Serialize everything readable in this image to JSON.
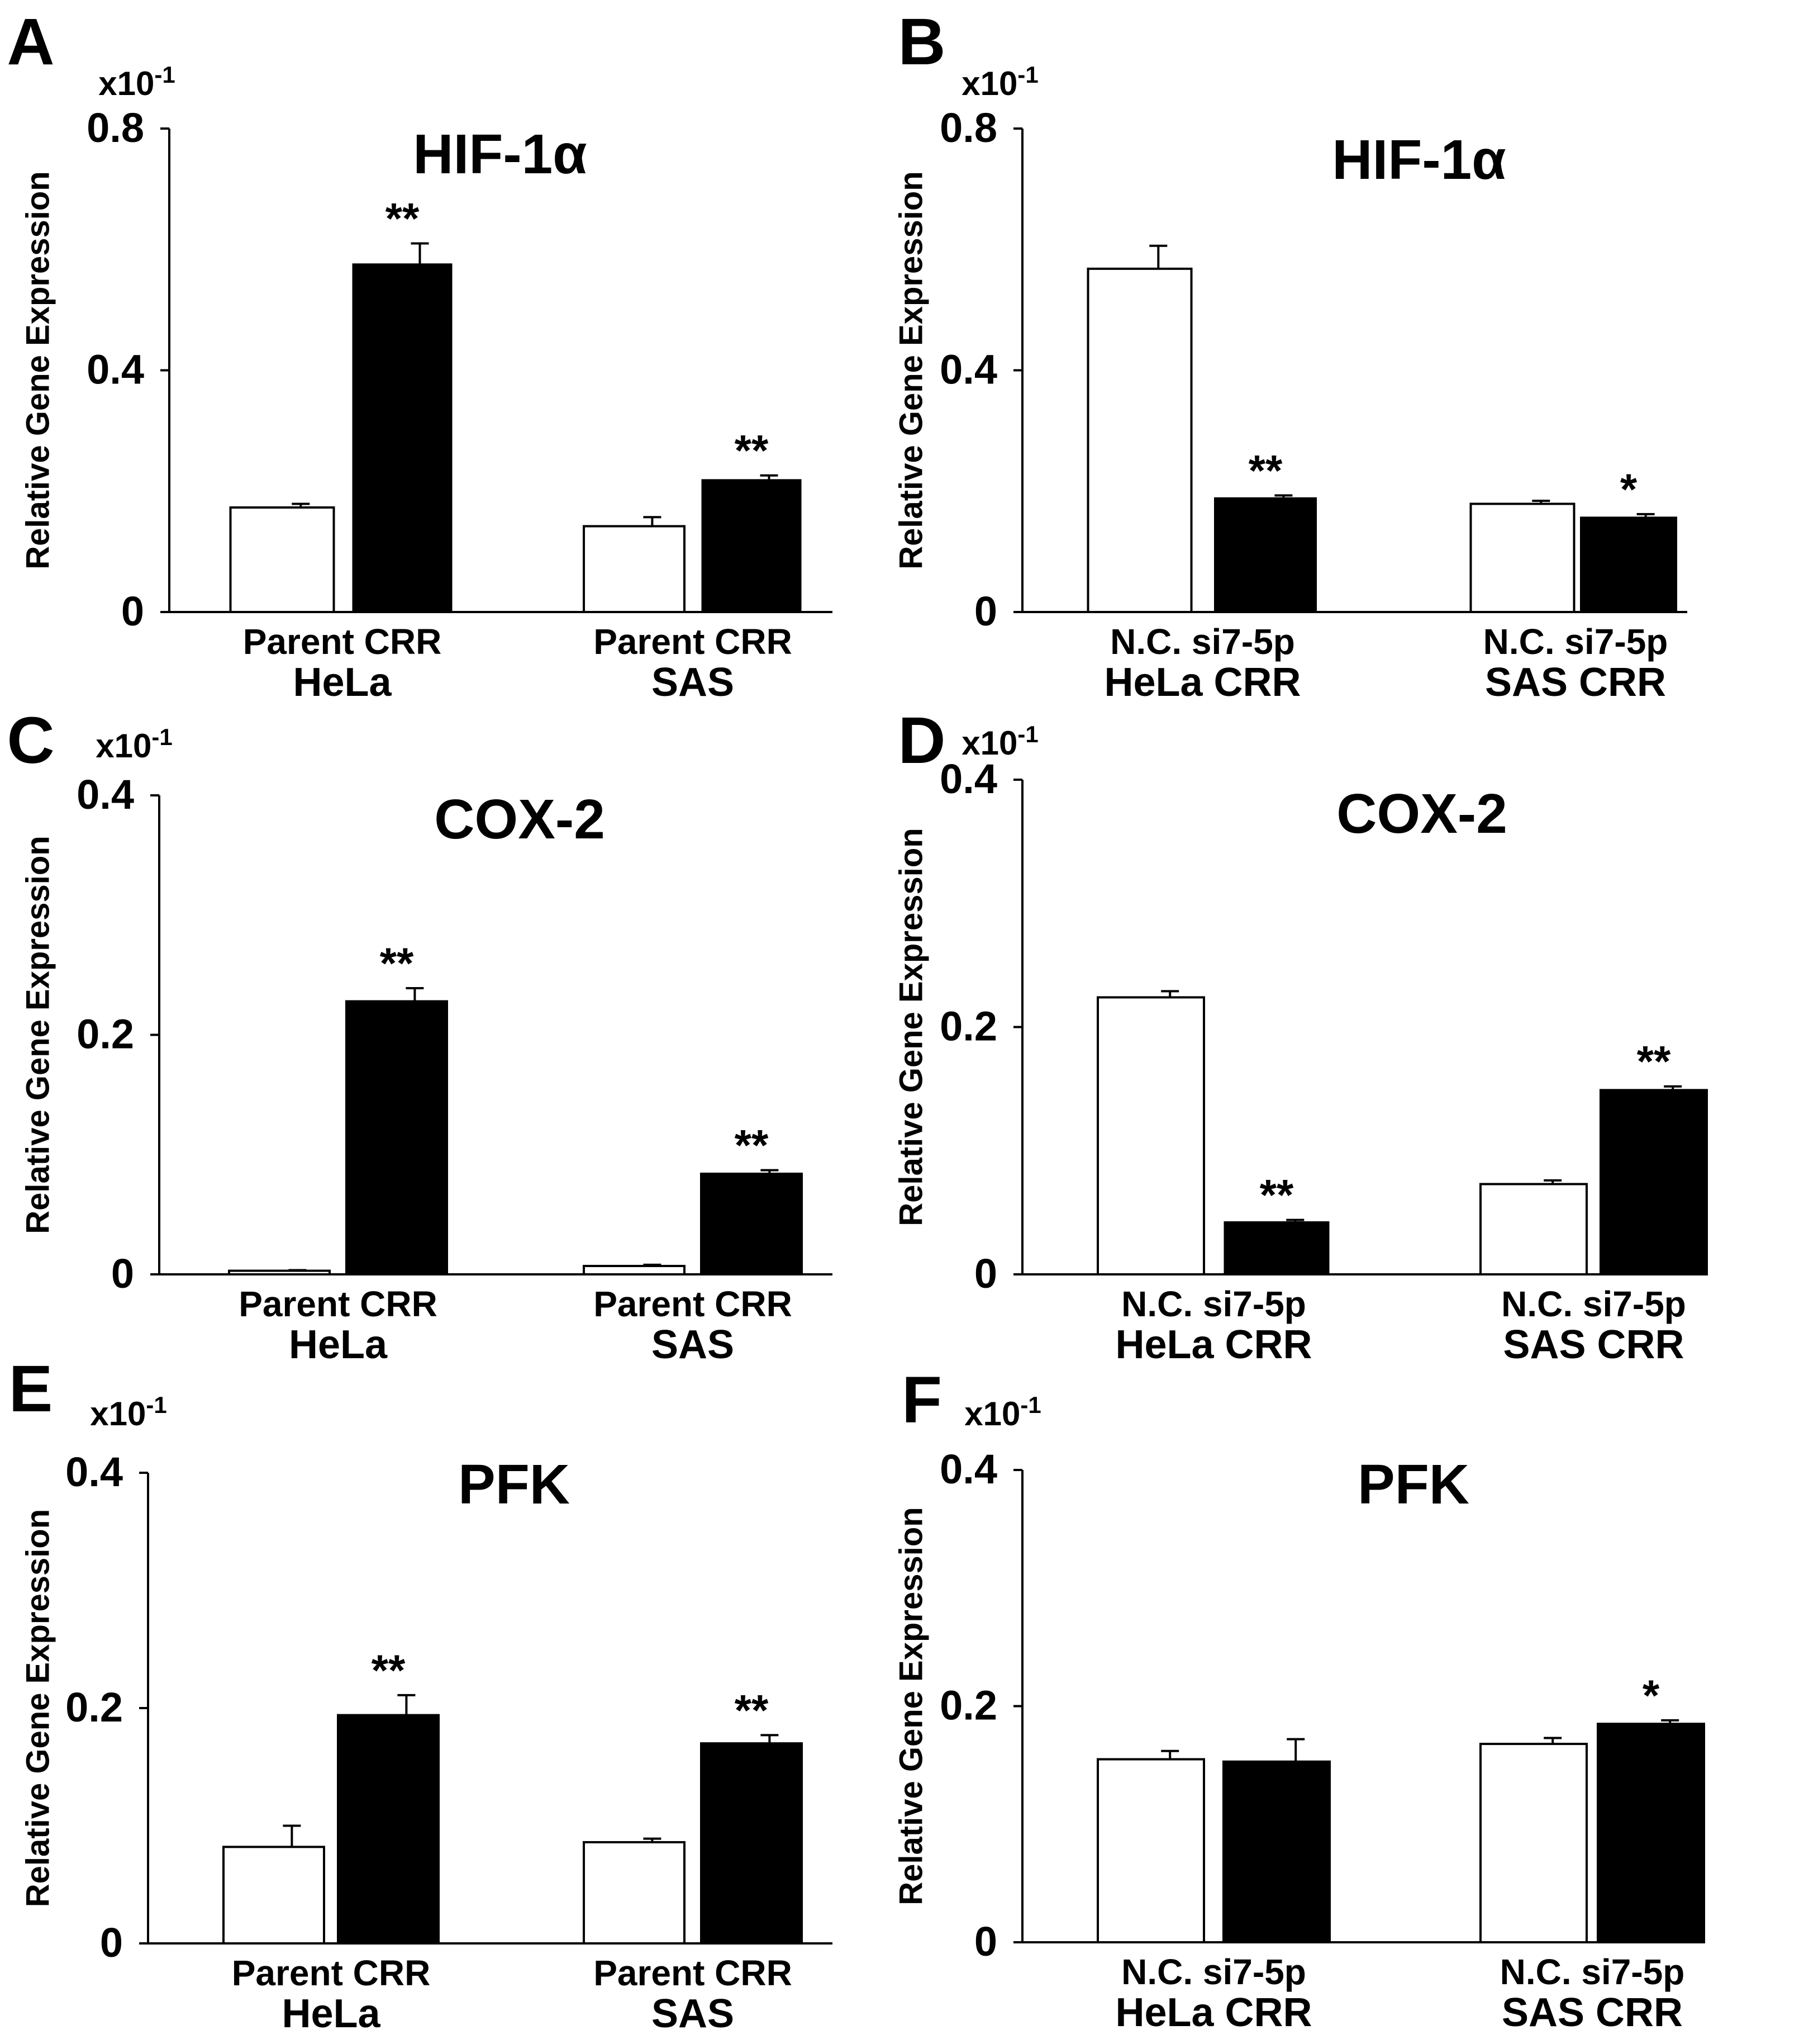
{
  "figure": {
    "ylabel": "Relative Gene Expression",
    "scale_note": "x10",
    "scale_exp": "-1",
    "colors": {
      "control": "#ffffff",
      "treated": "#000000",
      "ink": "#000000"
    }
  },
  "chart_data": [
    {
      "panel": "A",
      "type": "bar",
      "title": "HIF-1α",
      "ylabel": "Relative Gene Expression",
      "ylim": [
        0,
        0.8
      ],
      "yticks": [
        0,
        0.4,
        0.8
      ],
      "ytick_labels": [
        "0",
        "0.4",
        "0.8"
      ],
      "groups": [
        {
          "name": "HeLa",
          "sublabels": "Parent CRR",
          "bars": [
            {
              "label": "Parent",
              "value": 0.173,
              "error": 0.006,
              "fill": "white",
              "sig": ""
            },
            {
              "label": "CRR",
              "value": 0.575,
              "error": 0.035,
              "fill": "black",
              "sig": "**"
            }
          ]
        },
        {
          "name": "SAS",
          "sublabels": "Parent CRR",
          "bars": [
            {
              "label": "Parent",
              "value": 0.142,
              "error": 0.015,
              "fill": "white",
              "sig": ""
            },
            {
              "label": "CRR",
              "value": 0.218,
              "error": 0.008,
              "fill": "black",
              "sig": "**"
            }
          ]
        }
      ]
    },
    {
      "panel": "B",
      "type": "bar",
      "title": "HIF-1α",
      "ylabel": "Relative Gene Expression",
      "ylim": [
        0,
        0.8
      ],
      "yticks": [
        0,
        0.4,
        0.8
      ],
      "ytick_labels": [
        "0",
        "0.4",
        "0.8"
      ],
      "groups": [
        {
          "name": "HeLa CRR",
          "sublabels": "N.C. si7-5p",
          "bars": [
            {
              "label": "N.C.",
              "value": 0.568,
              "error": 0.038,
              "fill": "white",
              "sig": ""
            },
            {
              "label": "si7-5p",
              "value": 0.188,
              "error": 0.005,
              "fill": "black",
              "sig": "**"
            }
          ]
        },
        {
          "name": "SAS CRR",
          "sublabels": "N.C. si7-5p",
          "bars": [
            {
              "label": "N.C.",
              "value": 0.179,
              "error": 0.005,
              "fill": "white",
              "sig": ""
            },
            {
              "label": "si7-5p",
              "value": 0.156,
              "error": 0.006,
              "fill": "black",
              "sig": "*"
            }
          ]
        }
      ]
    },
    {
      "panel": "C",
      "type": "bar",
      "title": "COX-2",
      "ylabel": "Relative Gene Expression",
      "ylim": [
        0,
        0.4
      ],
      "yticks": [
        0,
        0.2,
        0.4
      ],
      "ytick_labels": [
        "0",
        "0.2",
        "0.4"
      ],
      "groups": [
        {
          "name": "HeLa",
          "sublabels": "Parent CRR",
          "bars": [
            {
              "label": "Parent",
              "value": 0.003,
              "error": 0.0005,
              "fill": "white",
              "sig": ""
            },
            {
              "label": "CRR",
              "value": 0.228,
              "error": 0.011,
              "fill": "black",
              "sig": "**"
            }
          ]
        },
        {
          "name": "SAS",
          "sublabels": "Parent CRR",
          "bars": [
            {
              "label": "Parent",
              "value": 0.007,
              "error": 0.001,
              "fill": "white",
              "sig": ""
            },
            {
              "label": "CRR",
              "value": 0.084,
              "error": 0.003,
              "fill": "black",
              "sig": "**"
            }
          ]
        }
      ]
    },
    {
      "panel": "D",
      "type": "bar",
      "title": "COX-2",
      "ylabel": "Relative Gene Expression",
      "ylim": [
        0,
        0.4
      ],
      "yticks": [
        0,
        0.2,
        0.4
      ],
      "ytick_labels": [
        "0",
        "0.2",
        "0.4"
      ],
      "groups": [
        {
          "name": "HeLa CRR",
          "sublabels": "N.C. si7-5p",
          "bars": [
            {
              "label": "N.C.",
              "value": 0.224,
              "error": 0.005,
              "fill": "white",
              "sig": ""
            },
            {
              "label": "si7-5p",
              "value": 0.042,
              "error": 0.002,
              "fill": "black",
              "sig": "**"
            }
          ]
        },
        {
          "name": "SAS CRR",
          "sublabels": "N.C. si7-5p",
          "bars": [
            {
              "label": "N.C.",
              "value": 0.073,
              "error": 0.003,
              "fill": "white",
              "sig": ""
            },
            {
              "label": "si7-5p",
              "value": 0.149,
              "error": 0.003,
              "fill": "black",
              "sig": "**"
            }
          ]
        }
      ]
    },
    {
      "panel": "E",
      "type": "bar",
      "title": "PFK",
      "ylabel": "Relative Gene Expression",
      "ylim": [
        0,
        0.4
      ],
      "yticks": [
        0,
        0.2,
        0.4
      ],
      "ytick_labels": [
        "0",
        "0.2",
        "0.4"
      ],
      "groups": [
        {
          "name": "HeLa",
          "sublabels": "Parent  CRR",
          "bars": [
            {
              "label": "Parent",
              "value": 0.082,
              "error": 0.018,
              "fill": "white",
              "sig": ""
            },
            {
              "label": "CRR",
              "value": 0.194,
              "error": 0.017,
              "fill": "black",
              "sig": "**"
            }
          ]
        },
        {
          "name": "SAS",
          "sublabels": "Parent  CRR",
          "bars": [
            {
              "label": "Parent",
              "value": 0.086,
              "error": 0.003,
              "fill": "white",
              "sig": ""
            },
            {
              "label": "CRR",
              "value": 0.17,
              "error": 0.007,
              "fill": "black",
              "sig": "**"
            }
          ]
        }
      ]
    },
    {
      "panel": "F",
      "type": "bar",
      "title": "PFK",
      "ylabel": "Relative Gene Expression",
      "ylim": [
        0,
        0.4
      ],
      "yticks": [
        0,
        0.2,
        0.4
      ],
      "ytick_labels": [
        "0",
        "0.2",
        "0.4"
      ],
      "groups": [
        {
          "name": "HeLa CRR",
          "sublabels": "N.C.  si7-5p",
          "bars": [
            {
              "label": "N.C.",
              "value": 0.155,
              "error": 0.007,
              "fill": "white",
              "sig": ""
            },
            {
              "label": "si7-5p",
              "value": 0.153,
              "error": 0.019,
              "fill": "black",
              "sig": ""
            }
          ]
        },
        {
          "name": "SAS CRR",
          "sublabels": "N.C.  si7-5p",
          "bars": [
            {
              "label": "N.C.",
              "value": 0.168,
              "error": 0.005,
              "fill": "white",
              "sig": ""
            },
            {
              "label": "si7-5p",
              "value": 0.185,
              "error": 0.003,
              "fill": "black",
              "sig": "*"
            }
          ]
        }
      ]
    }
  ]
}
